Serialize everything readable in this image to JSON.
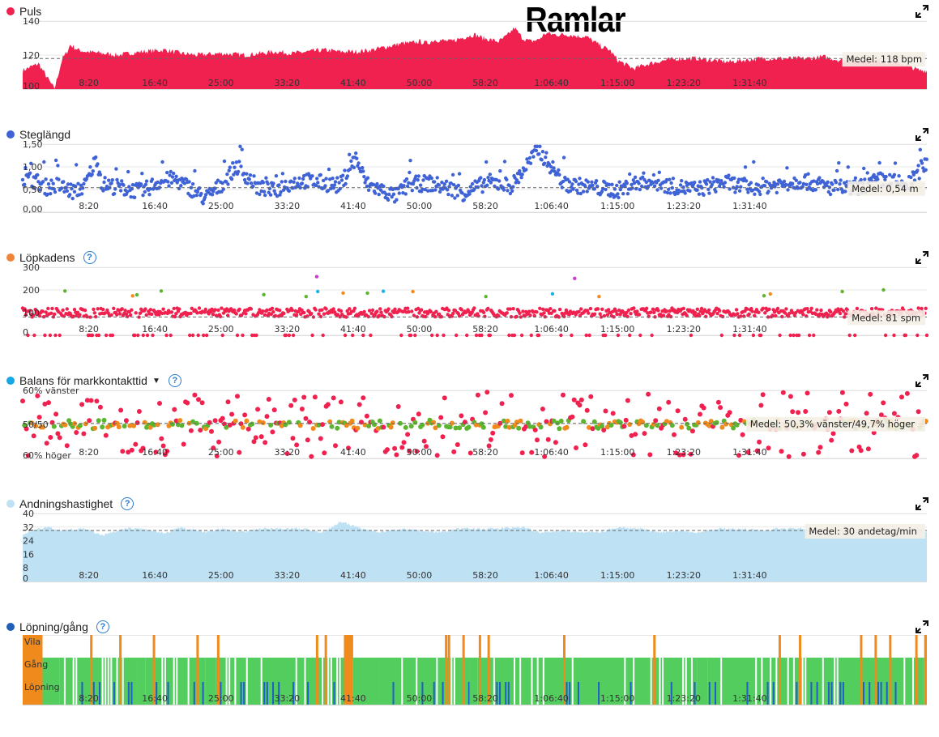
{
  "page": {
    "annotation": "Ramlar"
  },
  "x_axis": {
    "min_s": 0,
    "max_s": 6840,
    "ticks": [
      {
        "s": 500,
        "label": "8:20"
      },
      {
        "s": 1000,
        "label": "16:40"
      },
      {
        "s": 1500,
        "label": "25:00"
      },
      {
        "s": 2000,
        "label": "33:20"
      },
      {
        "s": 2500,
        "label": "41:40"
      },
      {
        "s": 3000,
        "label": "50:00"
      },
      {
        "s": 3500,
        "label": "58:20"
      },
      {
        "s": 4000,
        "label": "1:06:40"
      },
      {
        "s": 4500,
        "label": "1:15:00"
      },
      {
        "s": 5000,
        "label": "1:23:20"
      },
      {
        "s": 5500,
        "label": "1:31:40"
      }
    ]
  },
  "colors": {
    "heart": "#f0214f",
    "stride": "#3f63d6",
    "cadence_dot": "#f0853a",
    "balance_dot": "#16a8e6",
    "breath": "#bfe1f4",
    "walkrun_dot": "#1f5fb8",
    "purple": "#c93ccf",
    "green": "#5cb531",
    "orange": "#f08a1c",
    "cyan": "#1fb1e6",
    "run_blue": "#1f5fc8",
    "walk_green": "#52cd5e"
  },
  "charts": [
    {
      "id": "heart-rate",
      "title": "Puls",
      "dot_color": "#f0214f",
      "help": false,
      "dropdown": false,
      "ymin": 100,
      "ymax": 140,
      "yticks": [
        {
          "v": 100,
          "label": "100"
        },
        {
          "v": 120,
          "label": "120"
        },
        {
          "v": 140,
          "label": "140"
        }
      ],
      "mean_value": 118,
      "mean_label": "Medel: 118 bpm"
    },
    {
      "id": "stride-length",
      "title": "Steglängd",
      "dot_color": "#3f63d6",
      "help": false,
      "dropdown": false,
      "ymin": 0,
      "ymax": 1.5,
      "yticks": [
        {
          "v": 0,
          "label": "0,00"
        },
        {
          "v": 0.5,
          "label": "0,50"
        },
        {
          "v": 1.0,
          "label": "1,00"
        },
        {
          "v": 1.5,
          "label": "1,50"
        }
      ],
      "mean_value": 0.54,
      "mean_label": "Medel: 0,54 m"
    },
    {
      "id": "run-cadence",
      "title": "Löpkadens",
      "dot_color": "#f0853a",
      "help": true,
      "dropdown": false,
      "ymin": 0,
      "ymax": 300,
      "yticks": [
        {
          "v": 0,
          "label": "0"
        },
        {
          "v": 100,
          "label": "100"
        },
        {
          "v": 200,
          "label": "200"
        },
        {
          "v": 300,
          "label": "300"
        }
      ],
      "mean_value": 81,
      "mean_label": "Medel: 81 spm"
    },
    {
      "id": "gct-balance",
      "title": "Balans för markkontakttid",
      "dot_color": "#16a8e6",
      "help": true,
      "dropdown": true,
      "ymin": 40,
      "ymax": 60,
      "yticks": [
        {
          "v": 40,
          "label": "60% höger"
        },
        {
          "v": 50,
          "label": "50/50"
        },
        {
          "v": 60,
          "label": "60% vänster"
        }
      ],
      "mean_value": 50.3,
      "mean_label": "Medel: 50,3% vänster/49,7% höger"
    },
    {
      "id": "respiration-rate",
      "title": "Andningshastighet",
      "dot_color": "#bfe1f4",
      "help": true,
      "dropdown": false,
      "ymin": 0,
      "ymax": 40,
      "yticks": [
        {
          "v": 0,
          "label": "0"
        },
        {
          "v": 8,
          "label": "8"
        },
        {
          "v": 16,
          "label": "16"
        },
        {
          "v": 24,
          "label": "24"
        },
        {
          "v": 32,
          "label": "32"
        },
        {
          "v": 40,
          "label": "40"
        }
      ],
      "mean_value": 30,
      "mean_label": "Medel: 30 andetag/min"
    },
    {
      "id": "run-walk",
      "title": "Löpning/gång",
      "dot_color": "#1f5fb8",
      "help": true,
      "dropdown": false,
      "categories": [
        "Vila",
        "Gång",
        "Löpning"
      ],
      "mean_label": ""
    }
  ],
  "chart_data": [
    {
      "type": "area",
      "title": "Puls",
      "xlabel": "",
      "ylabel": "",
      "ylim": [
        100,
        140
      ],
      "unit": "bpm",
      "mean": 118,
      "x": [
        0,
        120,
        240,
        300,
        330,
        360,
        420,
        480,
        600,
        720,
        900,
        1080,
        1200,
        1320,
        1500,
        1680,
        1800,
        1920,
        2040,
        2160,
        2280,
        2400,
        2520,
        2640,
        2760,
        2880,
        2940,
        3000,
        3060,
        3120,
        3240,
        3360,
        3420,
        3480,
        3540,
        3600,
        3660,
        3720,
        3780,
        3840,
        3900,
        3960,
        4020,
        4080,
        4140,
        4200,
        4260,
        4320,
        4380,
        4440,
        4500,
        4620,
        4740,
        4860,
        4980,
        5100,
        5220,
        5340,
        5460,
        5580,
        5700,
        5820,
        5940,
        6060,
        6180,
        6300,
        6420,
        6540,
        6660,
        6780,
        6840
      ],
      "y": [
        111,
        115,
        100,
        118,
        121,
        126,
        123,
        122,
        121,
        120,
        122,
        123,
        121,
        120,
        121,
        120,
        121,
        122,
        121,
        122,
        123,
        122,
        122,
        123,
        125,
        127,
        127,
        128,
        127,
        129,
        128,
        131,
        132,
        130,
        129,
        128,
        131,
        136,
        130,
        128,
        129,
        133,
        132,
        132,
        132,
        131,
        131,
        128,
        125,
        123,
        117,
        112,
        115,
        117,
        118,
        118,
        117,
        116,
        117,
        118,
        118,
        118,
        118,
        119,
        117,
        117,
        117,
        116,
        115,
        111,
        111
      ]
    },
    {
      "type": "scatter",
      "title": "Steglängd",
      "xlabel": "",
      "ylabel": "",
      "ylim": [
        0,
        1.5
      ],
      "unit": "m",
      "mean": 0.54,
      "x": [
        80,
        180,
        260,
        380,
        470,
        560,
        600,
        720,
        900,
        1020,
        1140,
        1260,
        1380,
        1500,
        1620,
        1780,
        1900,
        2000,
        2120,
        2260,
        2400,
        2520,
        2600,
        2700,
        2820,
        2920,
        3080,
        3200,
        3340,
        3520,
        3700,
        3900,
        4100,
        4300,
        4500,
        4700,
        4900,
        5100,
        5300,
        5500,
        5700,
        5900,
        6100,
        6300,
        6500,
        6700,
        6820
      ],
      "y": [
        0.72,
        0.55,
        0.6,
        0.45,
        0.58,
        1.2,
        0.62,
        0.55,
        0.45,
        0.66,
        0.74,
        0.55,
        0.3,
        0.6,
        1.02,
        0.54,
        0.47,
        0.62,
        0.7,
        0.65,
        0.58,
        1.2,
        0.62,
        0.5,
        0.35,
        0.61,
        0.64,
        0.55,
        0.42,
        0.67,
        0.58,
        1.38,
        0.62,
        0.55,
        0.48,
        0.7,
        0.58,
        0.5,
        0.66,
        0.55,
        0.6,
        0.7,
        0.55,
        0.52,
        0.72,
        0.6,
        1.05
      ]
    },
    {
      "type": "scatter",
      "title": "Löpkadens",
      "xlabel": "",
      "ylabel": "",
      "ylim": [
        0,
        300
      ],
      "unit": "spm",
      "mean": 81,
      "x": [
        0,
        200,
        420,
        500,
        520,
        600,
        640,
        700,
        820,
        940,
        1060,
        1180,
        1300,
        1440,
        1580,
        1700,
        1820,
        1940,
        2060,
        2180,
        2300,
        2420,
        2540,
        2660,
        2780,
        2900,
        3020,
        3140,
        3260,
        3380,
        3500,
        3620,
        3740,
        3860,
        3980,
        4100,
        4220,
        4340,
        4460,
        4580,
        4700,
        4820,
        4940,
        5060,
        5180,
        5300,
        5420,
        5540,
        5660,
        5780,
        5900,
        6020,
        6140,
        6260,
        6380,
        6500,
        6620,
        6740,
        6840
      ],
      "y": [
        0,
        0,
        90,
        255,
        240,
        100,
        0,
        110,
        95,
        0,
        102,
        160,
        98,
        0,
        100,
        255,
        110,
        0,
        95,
        175,
        100,
        0,
        95,
        180,
        100,
        0,
        98,
        265,
        105,
        0,
        100,
        95,
        170,
        0,
        102,
        265,
        100,
        0,
        98,
        165,
        103,
        0,
        100,
        260,
        100,
        0,
        97,
        170,
        102,
        0,
        99,
        255,
        100,
        0,
        95,
        160,
        101,
        98,
        100
      ]
    },
    {
      "type": "scatter",
      "title": "Balans för markkontakttid",
      "xlabel": "",
      "ylabel": "",
      "ylim": [
        40,
        60
      ],
      "mean": 50.3,
      "x": [
        0,
        120,
        300,
        540,
        650,
        820,
        1000,
        1210,
        1350,
        1580,
        1820,
        2000,
        2250,
        2480,
        2660,
        2900,
        3100,
        3300,
        3520,
        3720,
        3960,
        4180,
        4420,
        4680,
        4900,
        5140,
        5360,
        5580,
        5800,
        6000,
        6240,
        6480,
        6700,
        6840
      ],
      "y": [
        50,
        59,
        49,
        58,
        47,
        51,
        55,
        44,
        59,
        48,
        53,
        58,
        46,
        50,
        57,
        43,
        52,
        59,
        45,
        54,
        49,
        58,
        44,
        60,
        51,
        47,
        56,
        45,
        52,
        59,
        44,
        50,
        46,
        42
      ],
      "mean_text": "50,3% vänster/49,7% höger"
    },
    {
      "type": "area",
      "title": "Andningshastighet",
      "xlabel": "",
      "ylabel": "",
      "ylim": [
        0,
        40
      ],
      "unit": "andetag/min",
      "mean": 30,
      "x": [
        0,
        180,
        300,
        480,
        600,
        780,
        900,
        1080,
        1200,
        1380,
        1500,
        1680,
        1800,
        1980,
        2100,
        2280,
        2400,
        2580,
        2700,
        2880,
        3000,
        3180,
        3300,
        3480,
        3600,
        3780,
        3900,
        4080,
        4200,
        4380,
        4500,
        4680,
        4800,
        4980,
        5100,
        5280,
        5400,
        5580,
        5700,
        5880,
        6000,
        6180,
        6300,
        6480,
        6600,
        6780,
        6840
      ],
      "y": [
        28,
        32,
        30,
        31,
        27,
        31,
        31,
        28,
        32,
        29,
        31,
        29,
        31,
        31,
        31,
        29,
        35,
        31,
        29,
        31,
        30,
        29,
        31,
        31,
        31,
        32,
        29,
        30,
        29,
        29,
        32,
        31,
        29,
        30,
        29,
        31,
        31,
        30,
        31,
        31,
        29,
        30,
        30,
        31,
        30,
        31,
        29
      ]
    },
    {
      "type": "bar",
      "title": "Löpning/gång",
      "xlabel": "",
      "ylabel": "",
      "categories": [
        "Vila",
        "Gång",
        "Löpning"
      ],
      "segments": [
        {
          "start": 0,
          "end": 150,
          "state": "Vila"
        },
        {
          "start": 150,
          "end": 280,
          "state": "Gång"
        },
        {
          "start": 280,
          "end": 870,
          "state": "Löpning"
        },
        {
          "start": 870,
          "end": 930,
          "state": "Gång"
        },
        {
          "start": 930,
          "end": 1380,
          "state": "Löpning"
        },
        {
          "start": 1380,
          "end": 1460,
          "state": "Gång"
        },
        {
          "start": 1460,
          "end": 2430,
          "state": "Löpning"
        },
        {
          "start": 2430,
          "end": 2500,
          "state": "Vila"
        },
        {
          "start": 2500,
          "end": 2700,
          "state": "Gång"
        },
        {
          "start": 2700,
          "end": 3380,
          "state": "Löpning"
        },
        {
          "start": 3380,
          "end": 3440,
          "state": "Gång"
        },
        {
          "start": 3440,
          "end": 5100,
          "state": "Löpning"
        },
        {
          "start": 5100,
          "end": 5180,
          "state": "Gång"
        },
        {
          "start": 5180,
          "end": 6820,
          "state": "Löpning"
        },
        {
          "start": 6820,
          "end": 6840,
          "state": "Vila"
        }
      ]
    }
  ]
}
